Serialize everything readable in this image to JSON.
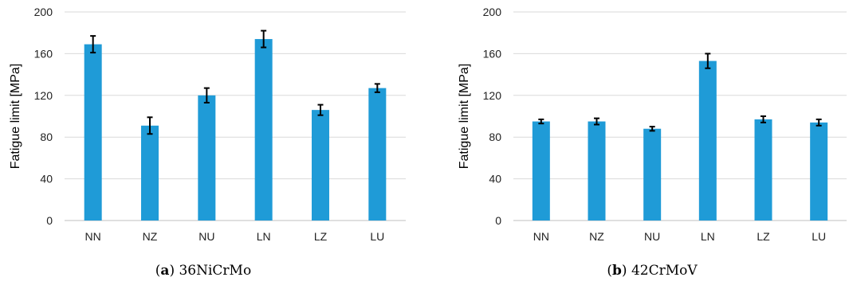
{
  "chart_data": [
    {
      "type": "bar",
      "caption_label": "a",
      "caption_title": "36NiCrMo",
      "ylabel": "Fatigue limit [MPa]",
      "xlabel": "",
      "categories": [
        "NN",
        "NZ",
        "NU",
        "LN",
        "LZ",
        "LU"
      ],
      "values": [
        169,
        91,
        120,
        174,
        106,
        127
      ],
      "errors": [
        8,
        8,
        7,
        8,
        5,
        4
      ],
      "ylim": [
        0,
        200
      ],
      "yticks": [
        0,
        40,
        80,
        120,
        160,
        200
      ],
      "grid": true,
      "bar_color": "#1f9bd7"
    },
    {
      "type": "bar",
      "caption_label": "b",
      "caption_title": "42CrMoV",
      "ylabel": "Fatigue limit [MPa]",
      "xlabel": "",
      "categories": [
        "NN",
        "NZ",
        "NU",
        "LN",
        "LZ",
        "LU"
      ],
      "values": [
        95,
        95,
        88,
        153,
        97,
        94
      ],
      "errors": [
        2,
        3,
        2,
        7,
        3,
        3
      ],
      "ylim": [
        0,
        200
      ],
      "yticks": [
        0,
        40,
        80,
        120,
        160,
        200
      ],
      "grid": true,
      "bar_color": "#1f9bd7"
    }
  ]
}
